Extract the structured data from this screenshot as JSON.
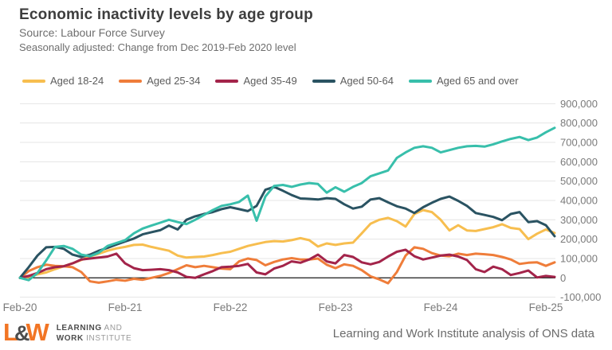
{
  "header": {
    "title": "Economic inactivity levels by age group",
    "source_line": "Source: Labour Force Survey",
    "note_line": "Seasonally adjusted: Change from Dec 2019-Feb 2020 level"
  },
  "legend": [
    {
      "label": "Aged 18-24",
      "color": "#F7BE4F"
    },
    {
      "label": "Aged 25-34",
      "color": "#EF7D3A"
    },
    {
      "label": "Aged 35-49",
      "color": "#A3244A"
    },
    {
      "label": "Aged 50-64",
      "color": "#2A5362"
    },
    {
      "label": "Aged 65 and over",
      "color": "#38BFAB"
    }
  ],
  "chart_data": {
    "type": "line",
    "title": "Economic inactivity levels by age group",
    "subtitle": "Seasonally adjusted: Change from Dec 2019-Feb 2020 level",
    "grid": "horizontal",
    "legend_position": "top",
    "ylim": [
      -100000,
      900000
    ],
    "y_tick_step": 100000,
    "y_tick_labels": [
      "900,000",
      "800,000",
      "700,000",
      "600,000",
      "500,000",
      "400,000",
      "300,000",
      "200,000",
      "100,000",
      "0",
      "-100,000"
    ],
    "y_tick_values": [
      900000,
      800000,
      700000,
      600000,
      500000,
      400000,
      300000,
      200000,
      100000,
      0,
      -100000
    ],
    "x_tick_labels": [
      "Feb-20",
      "Feb-21",
      "Feb-22",
      "Feb-23",
      "Feb-24",
      "Feb-25"
    ],
    "x_tick_indices": [
      0,
      12,
      24,
      36,
      48,
      60
    ],
    "n_points": 62,
    "x_unit": "months from Feb-2020",
    "series": [
      {
        "name": "Aged 18-24",
        "color": "#F7BE4F",
        "values": [
          0,
          5000,
          18000,
          28000,
          45000,
          60000,
          75000,
          92000,
          110000,
          125000,
          140000,
          152000,
          160000,
          170000,
          172000,
          160000,
          150000,
          140000,
          115000,
          105000,
          108000,
          110000,
          118000,
          128000,
          135000,
          150000,
          165000,
          175000,
          185000,
          190000,
          188000,
          195000,
          205000,
          195000,
          162000,
          178000,
          170000,
          178000,
          182000,
          230000,
          280000,
          300000,
          310000,
          293000,
          265000,
          330000,
          350000,
          340000,
          300000,
          245000,
          272000,
          245000,
          242000,
          252000,
          262000,
          277000,
          258000,
          252000,
          200000,
          228000,
          250000,
          232000
        ]
      },
      {
        "name": "Aged 25-34",
        "color": "#EF7D3A",
        "values": [
          0,
          35000,
          55000,
          68000,
          62000,
          60000,
          55000,
          30000,
          -18000,
          -25000,
          -18000,
          -10000,
          -15000,
          -5000,
          -10000,
          0,
          10000,
          25000,
          45000,
          65000,
          55000,
          62000,
          55000,
          48000,
          45000,
          85000,
          100000,
          92000,
          65000,
          82000,
          95000,
          102000,
          95000,
          95000,
          100000,
          68000,
          50000,
          70000,
          62000,
          40000,
          8000,
          -8000,
          -28000,
          30000,
          115000,
          158000,
          150000,
          128000,
          115000,
          112000,
          125000,
          118000,
          125000,
          122000,
          118000,
          108000,
          95000,
          72000,
          78000,
          80000,
          62000,
          80000
        ]
      },
      {
        "name": "Aged 35-49",
        "color": "#A3244A",
        "values": [
          0,
          10000,
          25000,
          45000,
          55000,
          60000,
          75000,
          95000,
          100000,
          105000,
          110000,
          125000,
          75000,
          50000,
          40000,
          42000,
          45000,
          40000,
          28000,
          5000,
          0,
          18000,
          35000,
          55000,
          58000,
          62000,
          72000,
          28000,
          18000,
          48000,
          62000,
          85000,
          78000,
          95000,
          120000,
          85000,
          75000,
          118000,
          108000,
          80000,
          70000,
          82000,
          110000,
          135000,
          145000,
          112000,
          95000,
          105000,
          115000,
          120000,
          110000,
          92000,
          45000,
          30000,
          58000,
          45000,
          15000,
          25000,
          38000,
          2000,
          10000,
          5000
        ]
      },
      {
        "name": "Aged 50-64",
        "color": "#2A5362",
        "values": [
          0,
          55000,
          115000,
          158000,
          160000,
          150000,
          120000,
          108000,
          120000,
          140000,
          155000,
          172000,
          188000,
          203000,
          225000,
          236000,
          246000,
          270000,
          250000,
          300000,
          318000,
          330000,
          340000,
          355000,
          365000,
          355000,
          345000,
          372000,
          455000,
          470000,
          450000,
          428000,
          410000,
          408000,
          405000,
          412000,
          408000,
          380000,
          358000,
          368000,
          405000,
          412000,
          390000,
          370000,
          358000,
          335000,
          365000,
          388000,
          408000,
          420000,
          398000,
          372000,
          335000,
          325000,
          315000,
          298000,
          330000,
          340000,
          288000,
          293000,
          272000,
          215000
        ]
      },
      {
        "name": "Aged 65 and over",
        "color": "#38BFAB",
        "values": [
          0,
          -12000,
          25000,
          90000,
          160000,
          165000,
          150000,
          120000,
          112000,
          130000,
          165000,
          180000,
          195000,
          230000,
          255000,
          270000,
          285000,
          300000,
          288000,
          278000,
          300000,
          325000,
          350000,
          372000,
          380000,
          392000,
          425000,
          295000,
          420000,
          475000,
          480000,
          470000,
          482000,
          490000,
          485000,
          440000,
          468000,
          445000,
          470000,
          490000,
          525000,
          540000,
          555000,
          620000,
          648000,
          672000,
          680000,
          672000,
          648000,
          660000,
          672000,
          680000,
          682000,
          678000,
          690000,
          705000,
          718000,
          728000,
          712000,
          725000,
          752000,
          775000
        ]
      }
    ]
  },
  "footer": {
    "logo": {
      "letter_l": "L",
      "ampersand": "&",
      "letter_w": "W",
      "line1_bold": "LEARNING",
      "line1_rest": " AND",
      "line2_bold": "WORK",
      "line2_rest": " INSTITUTE",
      "orange": "#F27524",
      "dark": "#4D4D4D"
    },
    "attribution": "Learning and Work Institute analysis of ONS data"
  },
  "colors": {
    "title_text": "#3d3d3d",
    "subtitle_text": "#6e6e6e",
    "axis_label": "#7a7a7a",
    "gridline": "#e4e4e4",
    "zero_line": "#2e2e2e",
    "background": "#ffffff"
  }
}
